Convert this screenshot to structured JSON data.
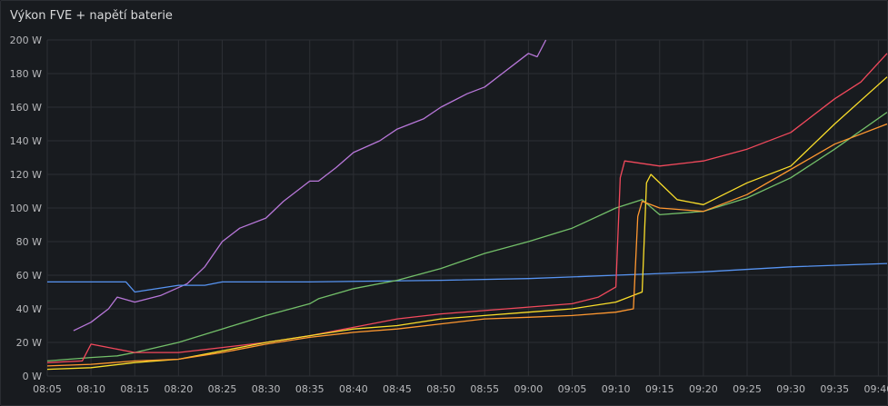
{
  "panel": {
    "title": "Výkon FVE + napětí baterie"
  },
  "colors": {
    "background": "#181b1f",
    "grid": "#2c2f34",
    "text": "#b7b8bb",
    "purple": "#b877d9",
    "blue": "#5794f2",
    "green": "#73bf69",
    "red": "#f2495c",
    "yellow": "#fade2a",
    "orange": "#ff9830"
  },
  "chart_data": {
    "type": "line",
    "title": "Výkon FVE + napětí baterie",
    "grid": true,
    "ylim": [
      0,
      200
    ],
    "yticks": [
      "0 W",
      "20 W",
      "40 W",
      "60 W",
      "80 W",
      "100 W",
      "120 W",
      "140 W",
      "160 W",
      "180 W",
      "200 W"
    ],
    "xlim": [
      "08:05",
      "09:41"
    ],
    "xticks": [
      "08:05",
      "08:10",
      "08:15",
      "08:20",
      "08:25",
      "08:30",
      "08:35",
      "08:40",
      "08:45",
      "08:50",
      "08:55",
      "09:00",
      "09:05",
      "09:10",
      "09:15",
      "09:20",
      "09:25",
      "09:30",
      "09:35",
      "09:40"
    ],
    "series": [
      {
        "color": "purple",
        "x": [
          "08:08",
          "08:10",
          "08:12",
          "08:13",
          "08:15",
          "08:18",
          "08:21",
          "08:23",
          "08:25",
          "08:27",
          "08:30",
          "08:32",
          "08:35",
          "08:36",
          "08:38",
          "08:40",
          "08:43",
          "08:45",
          "08:48",
          "08:50",
          "08:53",
          "08:55",
          "08:57",
          "08:59",
          "09:00",
          "09:01",
          "09:02"
        ],
        "y": [
          27,
          32,
          40,
          47,
          44,
          48,
          55,
          65,
          80,
          88,
          94,
          104,
          116,
          116,
          124,
          133,
          140,
          147,
          153,
          160,
          168,
          172,
          180,
          188,
          192,
          190,
          200
        ]
      },
      {
        "color": "blue",
        "x": [
          "08:05",
          "08:10",
          "08:14",
          "08:15",
          "08:20",
          "08:23",
          "08:25",
          "08:35",
          "08:50",
          "09:00",
          "09:05",
          "09:10",
          "09:20",
          "09:30",
          "09:41"
        ],
        "y": [
          56,
          56,
          56,
          50,
          54,
          54,
          56,
          56,
          57,
          58,
          59,
          60,
          62,
          65,
          67
        ]
      },
      {
        "color": "green",
        "x": [
          "08:05",
          "08:10",
          "08:13",
          "08:15",
          "08:20",
          "08:25",
          "08:30",
          "08:35",
          "08:36",
          "08:40",
          "08:45",
          "08:50",
          "08:55",
          "09:00",
          "09:05",
          "09:10",
          "09:13",
          "09:15",
          "09:20",
          "09:25",
          "09:30",
          "09:35",
          "09:41"
        ],
        "y": [
          9,
          11,
          12,
          14,
          20,
          28,
          36,
          43,
          46,
          52,
          57,
          64,
          73,
          80,
          88,
          100,
          105,
          96,
          98,
          106,
          118,
          135,
          157
        ]
      },
      {
        "color": "red",
        "x": [
          "08:05",
          "08:09",
          "08:10",
          "08:15",
          "08:20",
          "08:25",
          "08:30",
          "08:35",
          "08:40",
          "08:45",
          "08:50",
          "08:55",
          "09:00",
          "09:05",
          "09:08",
          "09:10",
          "09:10.5",
          "09:11",
          "09:15",
          "09:20",
          "09:25",
          "09:30",
          "09:35",
          "09:38",
          "09:41"
        ],
        "y": [
          8,
          9,
          19,
          14,
          14,
          17,
          20,
          24,
          29,
          34,
          37,
          39,
          41,
          43,
          47,
          53,
          118,
          128,
          125,
          128,
          135,
          145,
          165,
          175,
          192
        ]
      },
      {
        "color": "yellow",
        "x": [
          "08:05",
          "08:10",
          "08:15",
          "08:20",
          "08:25",
          "08:30",
          "08:35",
          "08:40",
          "08:45",
          "08:50",
          "08:55",
          "09:00",
          "09:05",
          "09:10",
          "09:13",
          "09:13.5",
          "09:14",
          "09:17",
          "09:20",
          "09:25",
          "09:30",
          "09:35",
          "09:41"
        ],
        "y": [
          4,
          5,
          8,
          10,
          15,
          20,
          24,
          28,
          30,
          34,
          36,
          38,
          40,
          44,
          50,
          115,
          120,
          105,
          102,
          115,
          125,
          150,
          178
        ]
      },
      {
        "color": "orange",
        "x": [
          "08:05",
          "08:10",
          "08:15",
          "08:20",
          "08:25",
          "08:30",
          "08:35",
          "08:40",
          "08:45",
          "08:50",
          "08:55",
          "09:00",
          "09:05",
          "09:10",
          "09:12",
          "09:12.5",
          "09:13",
          "09:15",
          "09:20",
          "09:25",
          "09:30",
          "09:35",
          "09:41"
        ],
        "y": [
          6,
          7,
          9,
          10,
          14,
          19,
          23,
          26,
          28,
          31,
          34,
          35,
          36,
          38,
          40,
          95,
          104,
          100,
          98,
          108,
          123,
          138,
          150
        ]
      }
    ]
  }
}
